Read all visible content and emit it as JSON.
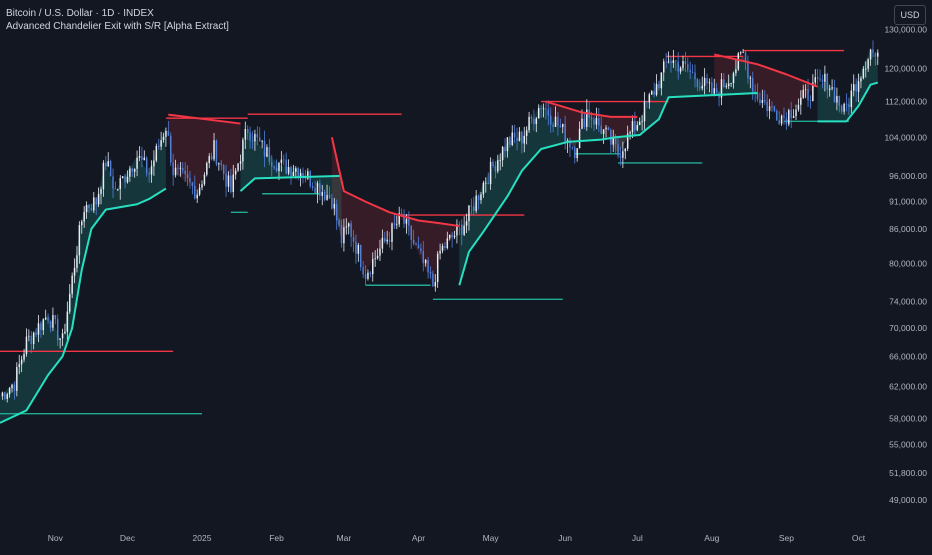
{
  "header": {
    "symbol": "Bitcoin / U.S. Dollar · 1D · INDEX",
    "indicator": "Advanced Chandelier Exit with S/R [Alpha Extract]"
  },
  "toolbar": {
    "currency": "USD"
  },
  "colors": {
    "background": "#131722",
    "bull_candle": "#e8ecf3",
    "bear_candle": "#4f7fd8",
    "bull_trail": "#26e0c0",
    "bear_trail": "#f23645",
    "support": "#22ab94",
    "resistance": "#f23645",
    "axis_text": "#b2b5be"
  },
  "chart_data": {
    "type": "candlestick",
    "title": "Bitcoin / U.S. Dollar · 1D · INDEX",
    "scale": "log",
    "ylim": [
      47000,
      136000
    ],
    "xlim": [
      "2024-10-09",
      "2025-10-12"
    ],
    "y_ticks": [
      "130,000.00",
      "120,000.00",
      "112,000.00",
      "104,000.00",
      "96,000.00",
      "91,000.00",
      "86,000.00",
      "80,000.00",
      "74,000.00",
      "70,000.00",
      "66,000.00",
      "62,000.00",
      "58,000.00",
      "55,000.00",
      "51,800.00",
      "49,000.00"
    ],
    "x_ticks": [
      {
        "label": "Nov",
        "date": "2024-11-01"
      },
      {
        "label": "Dec",
        "date": "2024-12-01"
      },
      {
        "label": "2025",
        "date": "2025-01-01"
      },
      {
        "label": "Feb",
        "date": "2025-02-01"
      },
      {
        "label": "Mar",
        "date": "2025-03-01"
      },
      {
        "label": "Apr",
        "date": "2025-04-01"
      },
      {
        "label": "May",
        "date": "2025-05-01"
      },
      {
        "label": "Jun",
        "date": "2025-06-01"
      },
      {
        "label": "Jul",
        "date": "2025-07-01"
      },
      {
        "label": "Aug",
        "date": "2025-08-01"
      },
      {
        "label": "Sep",
        "date": "2025-09-01"
      },
      {
        "label": "Oct",
        "date": "2025-10-01"
      }
    ],
    "close_path": [
      [
        "2024-10-09",
        60800
      ],
      [
        "2024-10-15",
        62500
      ],
      [
        "2024-10-20",
        68000
      ],
      [
        "2024-10-29",
        72000
      ],
      [
        "2024-11-04",
        68000
      ],
      [
        "2024-11-07",
        75000
      ],
      [
        "2024-11-13",
        90000
      ],
      [
        "2024-11-18",
        91000
      ],
      [
        "2024-11-22",
        99000
      ],
      [
        "2024-11-26",
        93000
      ],
      [
        "2024-12-05",
        100000
      ],
      [
        "2024-12-10",
        96500
      ],
      [
        "2024-12-17",
        106500
      ],
      [
        "2024-12-20",
        97000
      ],
      [
        "2024-12-30",
        93000
      ],
      [
        "2025-01-06",
        101500
      ],
      [
        "2025-01-13",
        93000
      ],
      [
        "2025-01-20",
        106000
      ],
      [
        "2025-01-27",
        101000
      ],
      [
        "2025-02-03",
        98000
      ],
      [
        "2025-02-10",
        97500
      ],
      [
        "2025-02-24",
        91500
      ],
      [
        "2025-02-28",
        84000
      ],
      [
        "2025-03-03",
        86500
      ],
      [
        "2025-03-10",
        78500
      ],
      [
        "2025-03-20",
        85000
      ],
      [
        "2025-03-25",
        88000
      ],
      [
        "2025-03-31",
        82500
      ],
      [
        "2025-04-07",
        76500
      ],
      [
        "2025-04-10",
        82000
      ],
      [
        "2025-04-21",
        87500
      ],
      [
        "2025-04-28",
        94500
      ],
      [
        "2025-05-08",
        103000
      ],
      [
        "2025-05-14",
        104000
      ],
      [
        "2025-05-22",
        111500
      ],
      [
        "2025-05-28",
        107500
      ],
      [
        "2025-06-05",
        101500
      ],
      [
        "2025-06-10",
        110000
      ],
      [
        "2025-06-18",
        104500
      ],
      [
        "2025-06-23",
        100500
      ],
      [
        "2025-07-03",
        109000
      ],
      [
        "2025-07-11",
        118000
      ],
      [
        "2025-07-14",
        122500
      ],
      [
        "2025-07-22",
        119500
      ],
      [
        "2025-08-02",
        113500
      ],
      [
        "2025-08-08",
        117500
      ],
      [
        "2025-08-14",
        123500
      ],
      [
        "2025-08-19",
        114000
      ],
      [
        "2025-08-25",
        110500
      ],
      [
        "2025-08-31",
        108500
      ],
      [
        "2025-09-05",
        111000
      ],
      [
        "2025-09-13",
        115500
      ],
      [
        "2025-09-18",
        117000
      ],
      [
        "2025-09-25",
        109500
      ],
      [
        "2025-10-01",
        118000
      ],
      [
        "2025-10-06",
        124800
      ],
      [
        "2025-10-09",
        121800
      ]
    ],
    "trailing_stop": {
      "bull": [
        [
          [
            "2024-10-09",
            57500
          ],
          [
            "2024-10-20",
            59000
          ],
          [
            "2024-10-29",
            63500
          ],
          [
            "2024-11-04",
            66000
          ],
          [
            "2024-11-08",
            70000
          ],
          [
            "2024-11-12",
            79000
          ],
          [
            "2024-11-16",
            86000
          ],
          [
            "2024-11-22",
            89500
          ],
          [
            "2024-12-05",
            90500
          ],
          [
            "2024-12-10",
            91500
          ],
          [
            "2024-12-17",
            93500
          ]
        ],
        [
          [
            "2025-01-17",
            93000
          ],
          [
            "2025-01-23",
            95500
          ],
          [
            "2025-02-28",
            96000
          ]
        ],
        [
          [
            "2025-04-18",
            76500
          ],
          [
            "2025-04-22",
            82000
          ],
          [
            "2025-04-28",
            85500
          ],
          [
            "2025-05-08",
            92000
          ],
          [
            "2025-05-14",
            97000
          ],
          [
            "2025-05-22",
            101500
          ],
          [
            "2025-06-02",
            103000
          ],
          [
            "2025-06-16",
            103500
          ],
          [
            "2025-06-22",
            104000
          ],
          [
            "2025-07-02",
            104500
          ],
          [
            "2025-07-10",
            108000
          ],
          [
            "2025-07-14",
            113000
          ],
          [
            "2025-08-20",
            114000
          ]
        ],
        [
          [
            "2025-09-14",
            107500
          ],
          [
            "2025-09-26",
            107500
          ],
          [
            "2025-10-01",
            111000
          ],
          [
            "2025-10-06",
            116000
          ],
          [
            "2025-10-09",
            116500
          ]
        ]
      ],
      "bear": [
        [
          [
            "2024-12-18",
            109000
          ],
          [
            "2025-01-17",
            107000
          ]
        ],
        [
          [
            "2025-02-24",
            104000
          ],
          [
            "2025-03-01",
            93000
          ],
          [
            "2025-03-10",
            91000
          ],
          [
            "2025-03-20",
            89000
          ],
          [
            "2025-04-01",
            87500
          ],
          [
            "2025-04-10",
            87000
          ],
          [
            "2025-04-18",
            86500
          ]
        ],
        [
          [
            "2025-05-24",
            112000
          ],
          [
            "2025-06-08",
            109500
          ],
          [
            "2025-06-20",
            108500
          ],
          [
            "2025-07-01",
            108500
          ]
        ],
        [
          [
            "2025-08-02",
            123500
          ],
          [
            "2025-08-20",
            121000
          ],
          [
            "2025-09-01",
            118500
          ],
          [
            "2025-09-14",
            115500
          ]
        ]
      ]
    },
    "resistance_levels": [
      {
        "from": "2024-10-09",
        "to": "2024-12-20",
        "value": 66700
      },
      {
        "from": "2024-12-17",
        "to": "2025-01-20",
        "value": 108200
      },
      {
        "from": "2025-01-20",
        "to": "2025-03-25",
        "value": 109100
      },
      {
        "from": "2025-03-24",
        "to": "2025-05-15",
        "value": 88500
      },
      {
        "from": "2025-05-22",
        "to": "2025-07-14",
        "value": 112000
      },
      {
        "from": "2025-07-13",
        "to": "2025-08-14",
        "value": 123000
      },
      {
        "from": "2025-08-14",
        "to": "2025-09-25",
        "value": 124500
      }
    ],
    "support_levels": [
      {
        "from": "2024-10-09",
        "to": "2025-01-01",
        "value": 58600
      },
      {
        "from": "2025-01-13",
        "to": "2025-01-20",
        "value": 89000
      },
      {
        "from": "2025-01-26",
        "to": "2025-02-19",
        "value": 92500
      },
      {
        "from": "2025-03-10",
        "to": "2025-04-06",
        "value": 76500
      },
      {
        "from": "2025-04-07",
        "to": "2025-05-31",
        "value": 74300
      },
      {
        "from": "2025-06-05",
        "to": "2025-06-24",
        "value": 100500
      },
      {
        "from": "2025-06-23",
        "to": "2025-07-28",
        "value": 98600
      },
      {
        "from": "2025-08-31",
        "to": "2025-09-27",
        "value": 107500
      }
    ]
  }
}
